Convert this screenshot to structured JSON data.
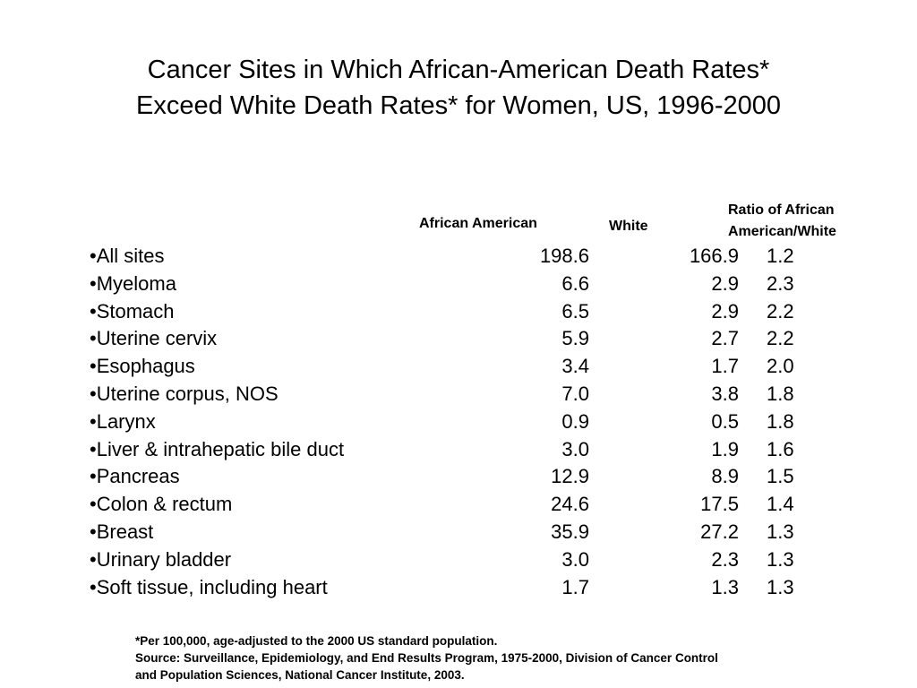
{
  "title": {
    "line1": "Cancer Sites in Which African-American  Death Rates*",
    "line2": "Exceed White Death Rates* for Women, US, 1996-2000"
  },
  "headers": {
    "african_american": "African American",
    "white": "White",
    "ratio_line1": "Ratio of African",
    "ratio_line2": "American/White"
  },
  "rows": [
    {
      "site": "•All sites",
      "aa": "198.6",
      "white": "166.9",
      "ratio": "1.2"
    },
    {
      "site": "•Myeloma",
      "aa": "6.6",
      "white": "2.9",
      "ratio": "2.3"
    },
    {
      "site": "•Stomach",
      "aa": "6.5",
      "white": "2.9",
      "ratio": "2.2"
    },
    {
      "site": "•Uterine cervix",
      "aa": "5.9",
      "white": "2.7",
      "ratio": "2.2"
    },
    {
      "site": "•Esophagus",
      "aa": "3.4",
      "white": "1.7",
      "ratio": "2.0"
    },
    {
      "site": "•Uterine corpus, NOS",
      "aa": "7.0",
      "white": "3.8",
      "ratio": "1.8"
    },
    {
      "site": "•Larynx",
      "aa": "0.9",
      "white": "0.5",
      "ratio": "1.8"
    },
    {
      "site": "•Liver & intrahepatic bile duct",
      "aa": "3.0",
      "white": "1.9",
      "ratio": "1.6"
    },
    {
      "site": "•Pancreas",
      "aa": "12.9",
      "white": "8.9",
      "ratio": "1.5"
    },
    {
      "site": "•Colon & rectum",
      "aa": "24.6",
      "white": "17.5",
      "ratio": "1.4"
    },
    {
      "site": "•Breast",
      "aa": "35.9",
      "white": "27.2",
      "ratio": "1.3"
    },
    {
      "site": "•Urinary bladder",
      "aa": "3.0",
      "white": "2.3",
      "ratio": "1.3"
    },
    {
      "site": "•Soft tissue, including heart",
      "aa": "1.7",
      "white": "1.3",
      "ratio": "1.3"
    }
  ],
  "footnote": {
    "line1": "*Per 100,000, age-adjusted to the 2000 US standard population.",
    "line2": "Source: Surveillance, Epidemiology, and End Results Program, 1975-2000, Division of Cancer Control",
    "line3": "and Population Sciences, National Cancer Institute, 2003."
  }
}
